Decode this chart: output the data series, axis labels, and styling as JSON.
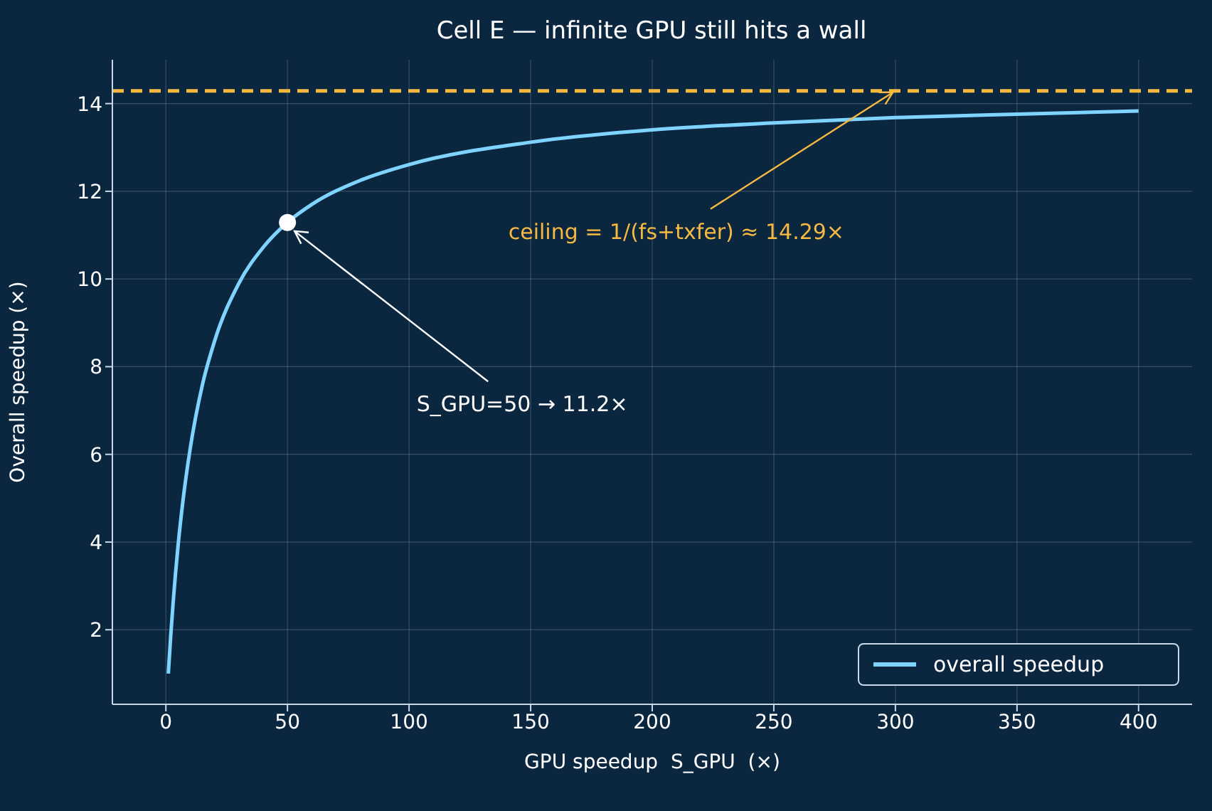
{
  "chart_data": {
    "type": "line",
    "title": "Cell E — infinite GPU still hits a wall",
    "xlabel": "GPU speedup  S_GPU  (×)",
    "ylabel": "Overall speedup (×)",
    "x": [
      1,
      2,
      3,
      5,
      7,
      10,
      15,
      20,
      30,
      40,
      50,
      60,
      80,
      100,
      150,
      200,
      250,
      300,
      350,
      400
    ],
    "series": [
      {
        "name": "overall speedup",
        "color": "#7fd3ff",
        "values": [
          1.0,
          1.87,
          2.63,
          3.91,
          4.93,
          6.13,
          7.58,
          8.58,
          9.9,
          10.72,
          11.29,
          11.7,
          12.25,
          12.61,
          13.12,
          13.4,
          13.56,
          13.68,
          13.76,
          13.83
        ]
      }
    ],
    "xlim": [
      -22,
      422
    ],
    "xticks": [
      0,
      50,
      100,
      150,
      200,
      250,
      300,
      350,
      400
    ],
    "ylim": [
      0.3,
      15
    ],
    "yticks": [
      2,
      4,
      6,
      8,
      10,
      12,
      14
    ],
    "ref_lines": [
      {
        "axis": "y",
        "value": 14.29,
        "color": "#f5b942",
        "line_style": "dashed"
      }
    ],
    "annotations": [
      {
        "text": "S_GPU=50 → 11.2×",
        "x": 50,
        "y": 11.2
      },
      {
        "text": "ceiling = 1/(fs+txfer) ≈ 14.29×",
        "x": 300,
        "y": 14.29
      }
    ],
    "grid": true,
    "legend": "bottom right",
    "marker": "none",
    "line_style": "solid"
  }
}
